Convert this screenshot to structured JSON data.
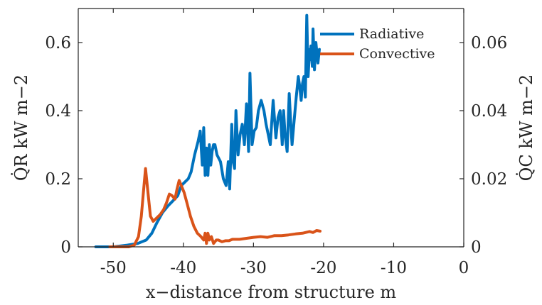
{
  "chart_data": {
    "type": "line",
    "title": "",
    "xlabel": "x−distance from structure m",
    "ylabel_left": "Q̇R kW m−2",
    "ylabel_right": "Q̇C kW m−2",
    "xlim": [
      -55,
      0
    ],
    "ylim_left": [
      0,
      0.7
    ],
    "ylim_right": [
      0,
      0.07
    ],
    "xticks": [
      -50,
      -40,
      -30,
      -20,
      -10,
      0
    ],
    "xtick_labels": [
      "-50",
      "-40",
      "-30",
      "-20",
      "-10",
      "0"
    ],
    "yticks_left": [
      0,
      0.2,
      0.4,
      0.6
    ],
    "ytick_labels_left": [
      "0",
      "0.2",
      "0.4",
      "0.6"
    ],
    "yticks_right": [
      0,
      0.02,
      0.04,
      0.06
    ],
    "ytick_labels_right": [
      "0",
      "0.02",
      "0.04",
      "0.06"
    ],
    "grid": false,
    "legend": "top-right",
    "series": [
      {
        "name": "Radiative",
        "axis": "left",
        "color": "#0072BD",
        "x": [
          -52.5,
          -50,
          -48,
          -46.5,
          -45.3,
          -44.5,
          -43.8,
          -43,
          -42.2,
          -41.5,
          -40.8,
          -40.3,
          -39.8,
          -39.3,
          -38.9,
          -38.4,
          -37.9,
          -37.6,
          -37.3,
          -37.1,
          -36.9,
          -36.7,
          -36.5,
          -36.3,
          -36.1,
          -35.9,
          -35.7,
          -35.5,
          -35.2,
          -34.7,
          -34.3,
          -33.9,
          -33.6,
          -33.4,
          -33.1,
          -32.9,
          -32.7,
          -32.5,
          -32.2,
          -31.9,
          -31.6,
          -31.3,
          -31.0,
          -30.7,
          -30.5,
          -30.2,
          -29.9,
          -29.6,
          -29.3,
          -28.9,
          -28.5,
          -28.2,
          -27.9,
          -27.6,
          -27.2,
          -26.8,
          -26.5,
          -26.2,
          -25.9,
          -25.7,
          -25.5,
          -25.2,
          -24.9,
          -24.7,
          -24.5,
          -24.2,
          -23.9,
          -23.6,
          -23.4,
          -23.2,
          -23.0,
          -22.8,
          -22.6,
          -22.4,
          -22.2,
          -22.0,
          -21.9,
          -21.8,
          -21.6,
          -21.5,
          -21.3,
          -21.1,
          -20.8,
          -20.6
        ],
        "y": [
          0.0,
          0.0,
          0.005,
          0.01,
          0.02,
          0.04,
          0.07,
          0.1,
          0.12,
          0.135,
          0.15,
          0.18,
          0.19,
          0.2,
          0.22,
          0.27,
          0.31,
          0.34,
          0.24,
          0.35,
          0.21,
          0.29,
          0.21,
          0.3,
          0.24,
          0.28,
          0.3,
          0.3,
          0.27,
          0.25,
          0.2,
          0.18,
          0.25,
          0.17,
          0.36,
          0.25,
          0.23,
          0.4,
          0.27,
          0.33,
          0.36,
          0.3,
          0.42,
          0.28,
          0.51,
          0.3,
          0.34,
          0.35,
          0.4,
          0.43,
          0.4,
          0.36,
          0.33,
          0.3,
          0.43,
          0.32,
          0.38,
          0.4,
          0.3,
          0.4,
          0.33,
          0.28,
          0.45,
          0.37,
          0.3,
          0.37,
          0.44,
          0.5,
          0.47,
          0.43,
          0.48,
          0.5,
          0.44,
          0.68,
          0.5,
          0.58,
          0.55,
          0.59,
          0.53,
          0.64,
          0.52,
          0.6,
          0.54,
          0.58
        ]
      },
      {
        "name": "Convective",
        "axis": "right",
        "color": "#D95319",
        "x": [
          -50.5,
          -49,
          -47.8,
          -47.0,
          -46.4,
          -46.0,
          -45.7,
          -45.4,
          -45.0,
          -44.7,
          -44.3,
          -43.8,
          -43.3,
          -42.8,
          -42.4,
          -42.0,
          -41.6,
          -41.2,
          -40.9,
          -40.6,
          -40.3,
          -39.9,
          -39.5,
          -39.0,
          -38.5,
          -38.0,
          -37.5,
          -37.1,
          -36.9,
          -36.7,
          -36.5,
          -36.3,
          -36.0,
          -35.7,
          -35.3,
          -35.0,
          -34.5,
          -34.0,
          -33.5,
          -33.0,
          -32.0,
          -31.0,
          -30.0,
          -29.0,
          -28.0,
          -27.0,
          -26.0,
          -25.0,
          -24.0,
          -23.0,
          -22.0,
          -21.5,
          -21.0,
          -20.5
        ],
        "y": [
          0.0,
          0.0,
          0.0,
          0.0005,
          0.003,
          0.009,
          0.016,
          0.023,
          0.015,
          0.009,
          0.0075,
          0.0085,
          0.0095,
          0.011,
          0.013,
          0.0155,
          0.015,
          0.014,
          0.017,
          0.0195,
          0.018,
          0.016,
          0.013,
          0.009,
          0.006,
          0.004,
          0.003,
          0.002,
          0.004,
          0.001,
          0.004,
          0.002,
          0.003,
          0.001,
          0.002,
          0.002,
          0.0015,
          0.0018,
          0.0018,
          0.0022,
          0.0022,
          0.0025,
          0.0028,
          0.003,
          0.0028,
          0.0033,
          0.0033,
          0.0035,
          0.0038,
          0.004,
          0.0045,
          0.0042,
          0.0048,
          0.0046
        ]
      }
    ]
  }
}
